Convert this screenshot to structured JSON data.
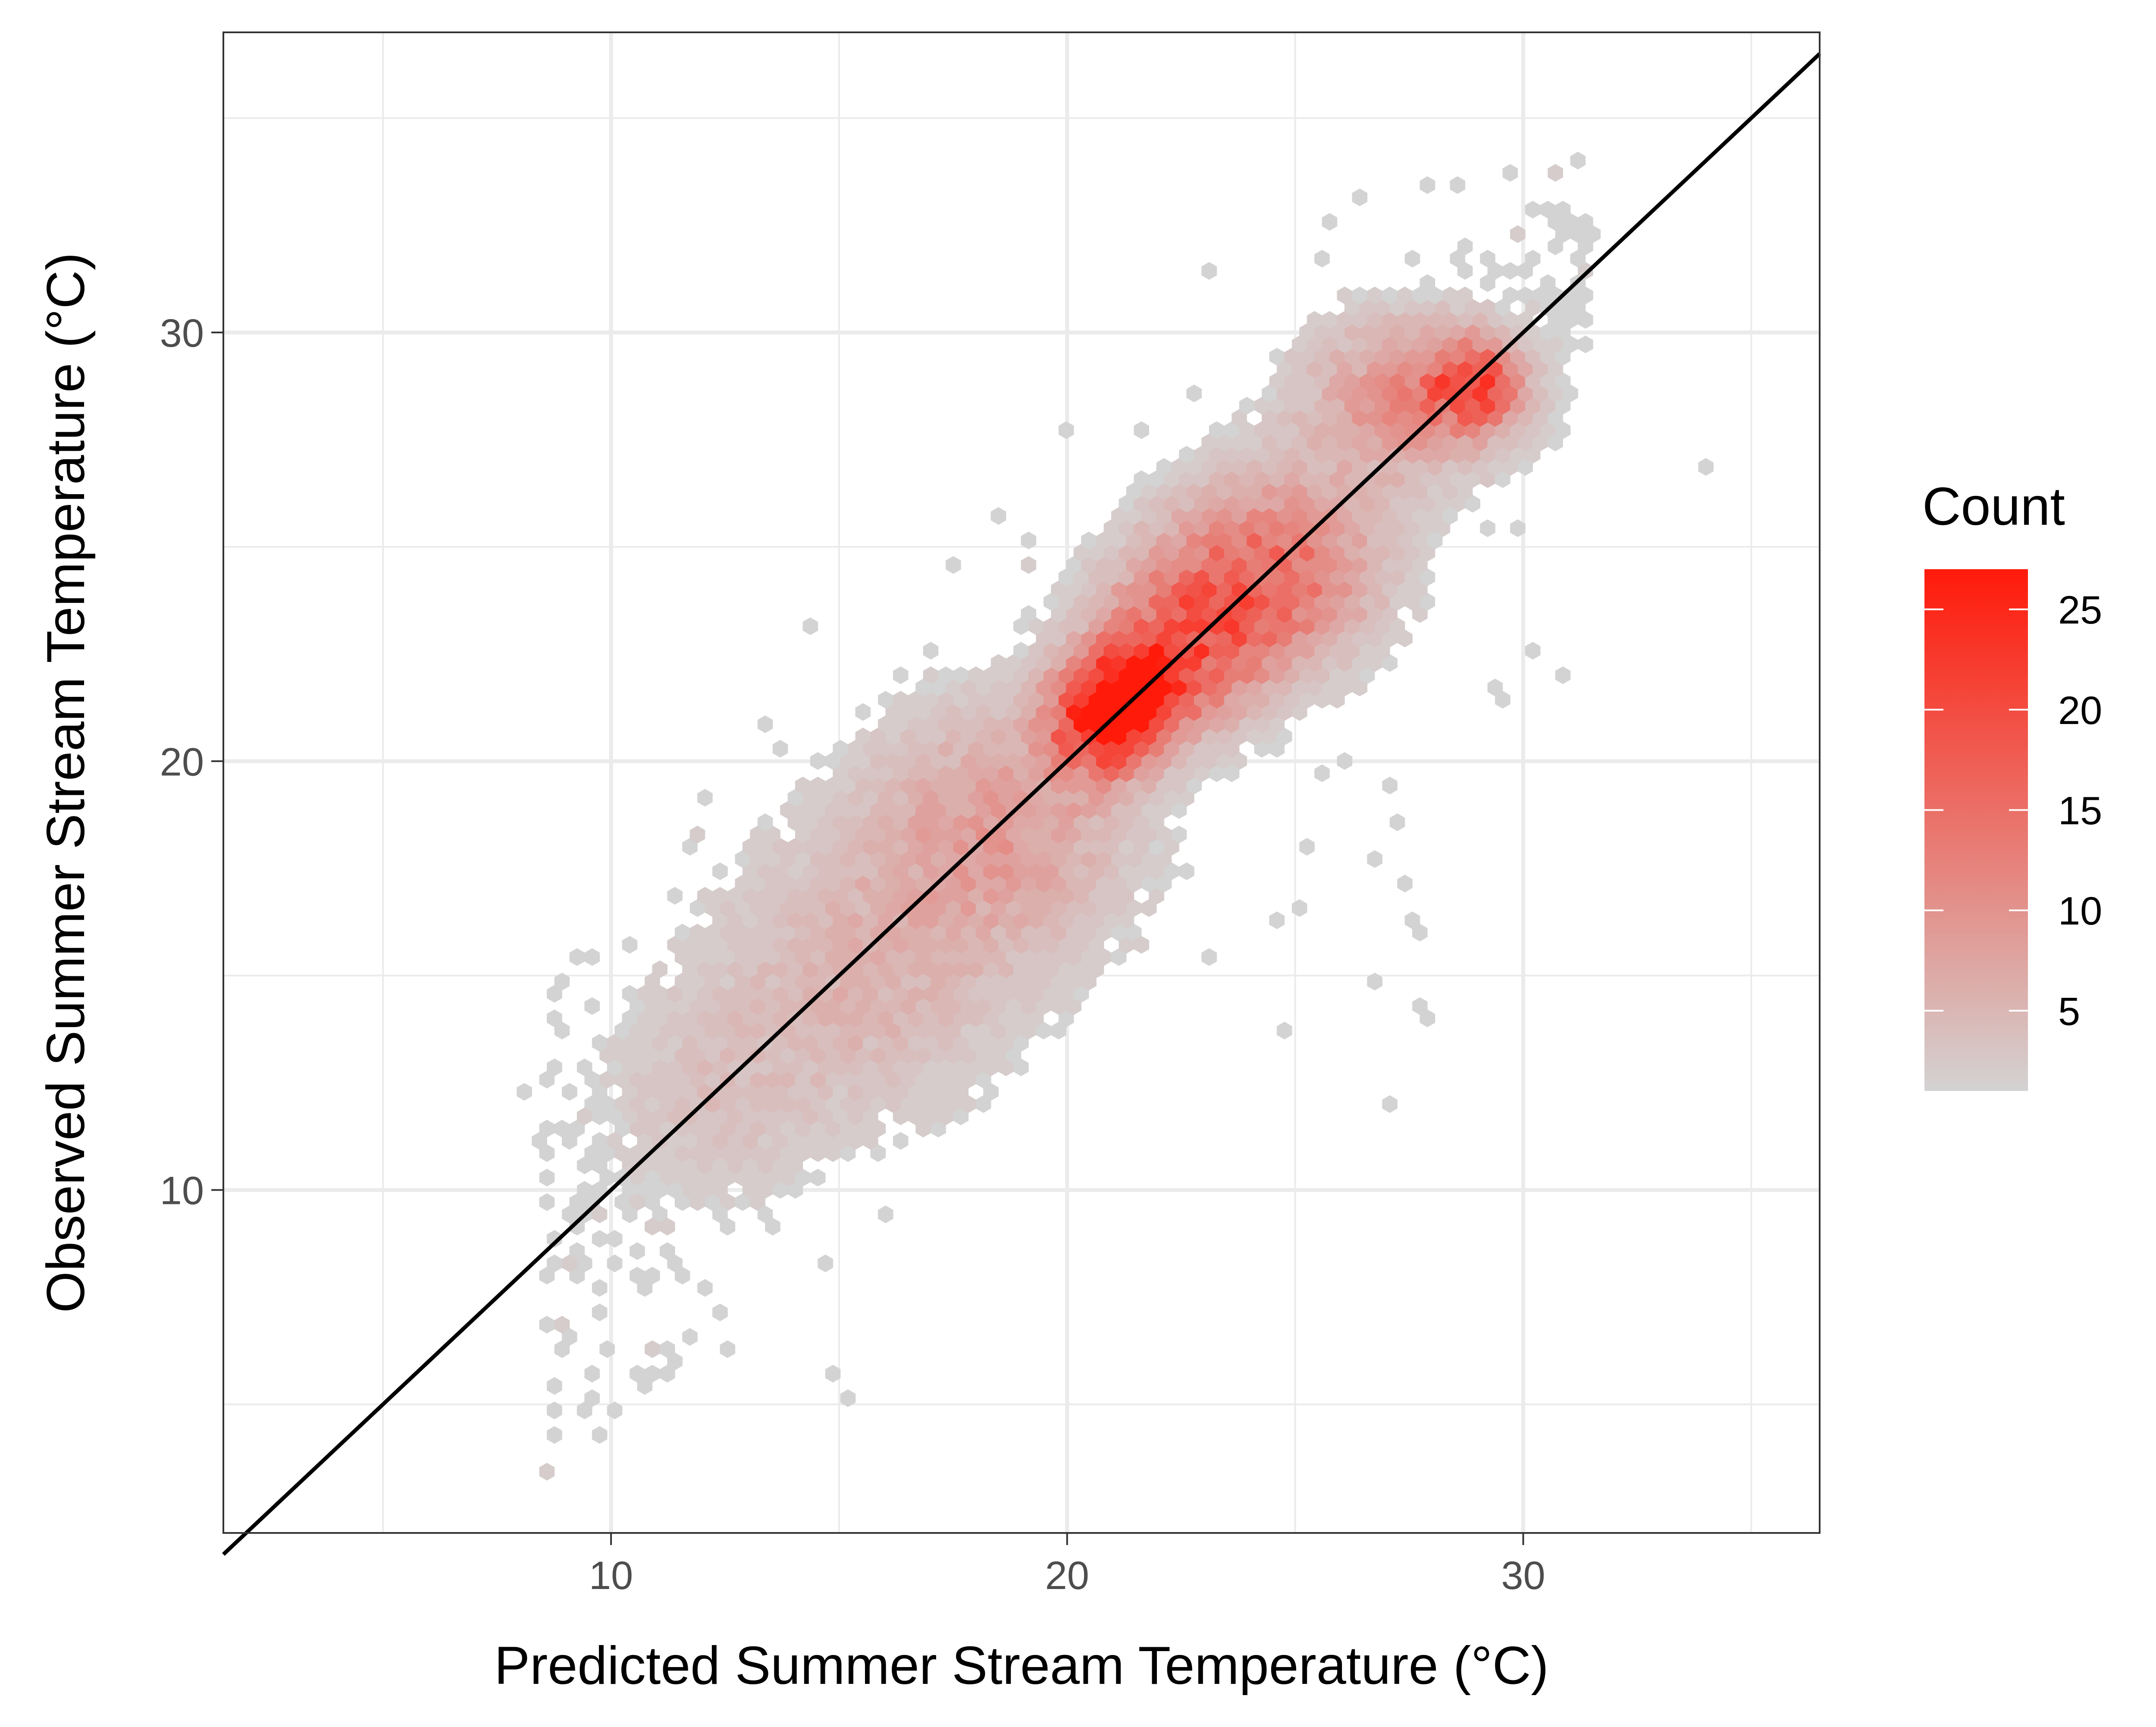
{
  "chart_data": {
    "type": "heatmap",
    "subtype": "hexbin",
    "title": "",
    "xlabel": "Predicted Summer Stream Temperature (°C)",
    "ylabel": "Observed Summer Stream Temperature (°C)",
    "xlim": [
      1.5,
      36.5
    ],
    "ylim": [
      2,
      37
    ],
    "x_ticks": [
      10,
      20,
      30
    ],
    "y_ticks": [
      10,
      20,
      30
    ],
    "x_tick_labels": [
      "10",
      "20",
      "30"
    ],
    "y_tick_labels": [
      "10",
      "20",
      "30"
    ],
    "grid": true,
    "reference_line": {
      "type": "1:1",
      "from": [
        1.5,
        1.5
      ],
      "to": [
        36.5,
        36.5
      ],
      "color": "#000000"
    },
    "legend": {
      "title": "Count",
      "placement": "right",
      "min": 1,
      "max": 27,
      "ticks": [
        5,
        10,
        15,
        20,
        25
      ],
      "tick_labels": [
        "5",
        "10",
        "15",
        "20",
        "25"
      ],
      "color_low": "#d3d3d3",
      "color_high": "#ff1a0a"
    },
    "hexbin": {
      "bin_width": 0.33,
      "clusters": [
        {
          "x": 20.8,
          "y": 21.0,
          "sx": 0.8,
          "sy": 0.9,
          "peak": 25
        },
        {
          "x": 21.6,
          "y": 21.7,
          "sx": 0.7,
          "sy": 0.7,
          "peak": 20
        },
        {
          "x": 22.6,
          "y": 22.8,
          "sx": 1.3,
          "sy": 1.3,
          "peak": 15
        },
        {
          "x": 24.5,
          "y": 24.5,
          "sx": 1.6,
          "sy": 1.5,
          "peak": 14
        },
        {
          "x": 28.9,
          "y": 28.8,
          "sx": 0.7,
          "sy": 0.7,
          "peak": 16
        },
        {
          "x": 27.5,
          "y": 28.5,
          "sx": 1.6,
          "sy": 1.3,
          "peak": 10
        },
        {
          "x": 18.5,
          "y": 18.5,
          "sx": 2.0,
          "sy": 2.0,
          "peak": 8
        },
        {
          "x": 15.5,
          "y": 15.0,
          "sx": 2.4,
          "sy": 2.3,
          "peak": 5
        },
        {
          "x": 12.0,
          "y": 12.0,
          "sx": 1.8,
          "sy": 1.8,
          "peak": 3
        }
      ],
      "spread": {
        "x_min": 8.5,
        "x_max": 31.5,
        "band_sigma": 1.9,
        "count": 1100
      },
      "outliers": [
        [
          33.9,
          26.8
        ],
        [
          30.8,
          22.0
        ],
        [
          30.2,
          22.5
        ],
        [
          29.4,
          21.3
        ],
        [
          29.4,
          21.8
        ],
        [
          27.1,
          12.1
        ],
        [
          27.6,
          14.2
        ],
        [
          27.8,
          14.0
        ],
        [
          26.9,
          15.0
        ],
        [
          27.5,
          16.3
        ],
        [
          27.8,
          16.0
        ],
        [
          27.5,
          17.1
        ],
        [
          26.9,
          17.8
        ],
        [
          27.4,
          18.5
        ],
        [
          27.1,
          19.3
        ],
        [
          26.0,
          20.0
        ],
        [
          24.7,
          13.8
        ],
        [
          24.6,
          16.4
        ],
        [
          25.1,
          16.5
        ],
        [
          25.4,
          18.1
        ],
        [
          15.3,
          5.1
        ],
        [
          15.0,
          5.6
        ],
        [
          10.6,
          5.4
        ],
        [
          10.9,
          5.6
        ],
        [
          11.2,
          5.8
        ],
        [
          9.8,
          6.4
        ],
        [
          8.7,
          7.0
        ],
        [
          11.2,
          6.4
        ],
        [
          21.5,
          27.8
        ],
        [
          20.0,
          27.8
        ],
        [
          27.8,
          33.4
        ],
        [
          28.5,
          33.5
        ],
        [
          26.5,
          33.2
        ],
        [
          23.0,
          31.5
        ],
        [
          25.6,
          31.6
        ],
        [
          8.1,
          12.4
        ],
        [
          8.7,
          14.0
        ],
        [
          8.9,
          13.8
        ],
        [
          9.4,
          15.4
        ],
        [
          14.4,
          23.1
        ],
        [
          18.4,
          25.7
        ],
        [
          17.5,
          24.6
        ],
        [
          13.5,
          21.0
        ],
        [
          12.0,
          19.2
        ],
        [
          25.8,
          32.6
        ],
        [
          10.5,
          15.8
        ],
        [
          13.6,
          20.2
        ],
        [
          16.2,
          22.0
        ],
        [
          19.0,
          25.2
        ]
      ]
    }
  }
}
